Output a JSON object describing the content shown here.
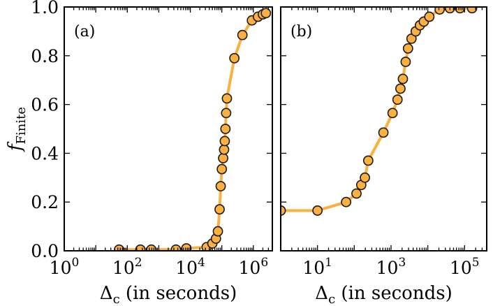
{
  "chart_data": [
    {
      "type": "line",
      "panel_label": "(a)",
      "x_scale": "log",
      "xlim": [
        1,
        4000000
      ],
      "ylim": [
        0.0,
        1.0
      ],
      "xticks": [
        1,
        100,
        10000,
        1000000
      ],
      "xtick_labels": [
        {
          "base": "10",
          "exp": "0"
        },
        {
          "base": "10",
          "exp": "2"
        },
        {
          "base": "10",
          "exp": "4"
        },
        {
          "base": "10",
          "exp": "6"
        }
      ],
      "yticks": [
        0.0,
        0.2,
        0.4,
        0.6,
        0.8,
        1.0
      ],
      "ytick_labels": [
        "0.0",
        "0.2",
        "0.4",
        "0.6",
        "0.8",
        "1.0"
      ],
      "xlabel": {
        "main": "Δ",
        "sub": "c",
        "rest": " (in seconds)"
      },
      "ylabel": {
        "main": "f",
        "sub": "Finite"
      },
      "series": [
        {
          "name": "f_Finite",
          "color": "#fbb040",
          "x": [
            55,
            260,
            580,
            3500,
            7500,
            33000,
            50000,
            65000,
            75000,
            85000,
            92000,
            100000,
            110000,
            118000,
            124000,
            130000,
            137000,
            145000,
            250000,
            450000,
            900000,
            1400000,
            2000000,
            2500000
          ],
          "y": [
            0.005,
            0.005,
            0.005,
            0.005,
            0.01,
            0.015,
            0.03,
            0.05,
            0.08,
            0.17,
            0.265,
            0.335,
            0.38,
            0.415,
            0.45,
            0.5,
            0.565,
            0.625,
            0.79,
            0.885,
            0.945,
            0.96,
            0.97,
            0.975
          ]
        }
      ]
    },
    {
      "type": "line",
      "panel_label": "(b)",
      "x_scale": "log",
      "xlim": [
        1,
        400000
      ],
      "ylim": [
        0.0,
        1.0
      ],
      "xticks": [
        10,
        1000,
        100000
      ],
      "xtick_labels": [
        {
          "base": "10",
          "exp": "1"
        },
        {
          "base": "10",
          "exp": "3"
        },
        {
          "base": "10",
          "exp": "5"
        }
      ],
      "yticks": [
        0.0,
        0.2,
        0.4,
        0.6,
        0.8,
        1.0
      ],
      "xlabel": {
        "main": "Δ",
        "sub": "c",
        "rest": " (in seconds)"
      },
      "series": [
        {
          "name": "f_Finite",
          "color": "#fbb040",
          "x": [
            1,
            10,
            60,
            115,
            155,
            195,
            240,
            620,
            1100,
            1500,
            1800,
            2100,
            2500,
            2900,
            3600,
            4700,
            6100,
            7800,
            11000,
            21000,
            40000,
            75000,
            160000
          ],
          "y": [
            0.165,
            0.165,
            0.2,
            0.235,
            0.27,
            0.3,
            0.37,
            0.485,
            0.565,
            0.62,
            0.665,
            0.705,
            0.775,
            0.83,
            0.87,
            0.9,
            0.925,
            0.94,
            0.96,
            0.99,
            0.995,
            0.995,
            0.995
          ]
        }
      ]
    }
  ]
}
